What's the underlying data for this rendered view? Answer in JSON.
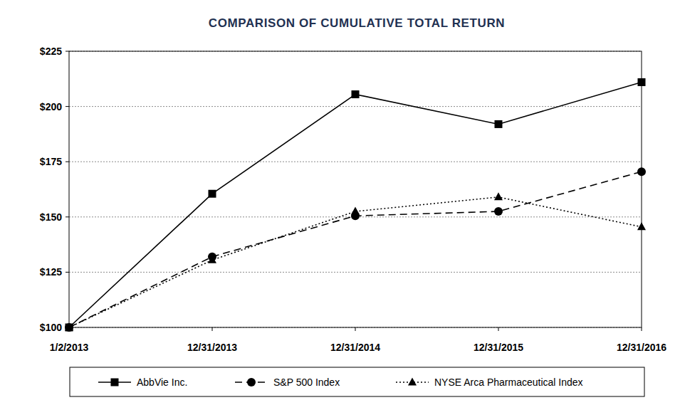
{
  "chart_data": {
    "type": "line",
    "title": "COMPARISON OF CUMULATIVE TOTAL RETURN",
    "categories": [
      "1/2/2013",
      "12/31/2013",
      "12/31/2014",
      "12/31/2015",
      "12/31/2016"
    ],
    "series": [
      {
        "name": "AbbVie Inc.",
        "color": "#000000",
        "marker": "square",
        "line_style": "solid",
        "values": [
          100,
          160.5,
          205.5,
          192,
          211
        ]
      },
      {
        "name": "S&P 500 Index",
        "color": "#000000",
        "marker": "circle",
        "line_style": "dashed",
        "values": [
          100,
          132,
          150.5,
          152.5,
          170.5
        ]
      },
      {
        "name": "NYSE Arca Pharmaceutical Index",
        "color": "#000000",
        "marker": "triangle",
        "line_style": "dotted",
        "values": [
          100,
          130.5,
          152.5,
          159,
          145.5
        ]
      }
    ],
    "ylim": [
      100,
      225
    ],
    "yticks": [
      {
        "value": 100,
        "label": "$100"
      },
      {
        "value": 125,
        "label": "$125"
      },
      {
        "value": 150,
        "label": "$150"
      },
      {
        "value": 175,
        "label": "$175"
      },
      {
        "value": 200,
        "label": "$200"
      },
      {
        "value": 225,
        "label": "$225"
      }
    ],
    "grid": true,
    "legend": "bottom"
  }
}
